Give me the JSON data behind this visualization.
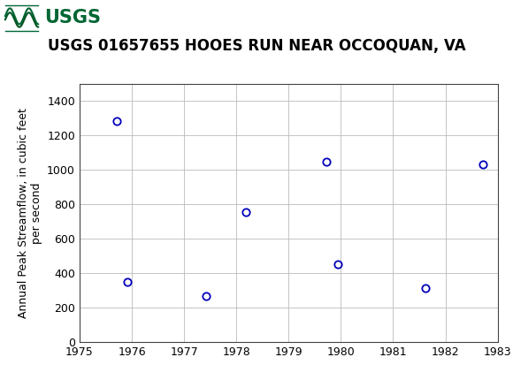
{
  "title": "USGS 01657655 HOOES RUN NEAR OCCOQUAN, VA",
  "ylabel_line1": "Annual Peak Streamflow, in cubic feet",
  "ylabel_line2": "per second",
  "xlim": [
    1975,
    1983
  ],
  "ylim": [
    0,
    1500
  ],
  "yticks": [
    0,
    200,
    400,
    600,
    800,
    1000,
    1200,
    1400
  ],
  "xticks": [
    1975,
    1976,
    1977,
    1978,
    1979,
    1980,
    1981,
    1982,
    1983
  ],
  "x_data": [
    1975.72,
    1975.92,
    1977.42,
    1978.18,
    1979.72,
    1979.95,
    1981.62,
    1982.72
  ],
  "y_data": [
    1280,
    350,
    265,
    755,
    1045,
    450,
    315,
    1030
  ],
  "marker_color": "#0000bb",
  "marker_size": 6,
  "marker_style": "o",
  "marker_facecolor": "none",
  "marker_linewidth": 1.3,
  "grid_color": "#bbbbbb",
  "grid_linewidth": 0.6,
  "background_color": "#ffffff",
  "header_color": "#006633",
  "title_fontsize": 12,
  "axis_label_fontsize": 9,
  "tick_fontsize": 9,
  "usgs_text": "USGS",
  "usgs_text_color": "#ffffff",
  "usgs_font_size": 15
}
